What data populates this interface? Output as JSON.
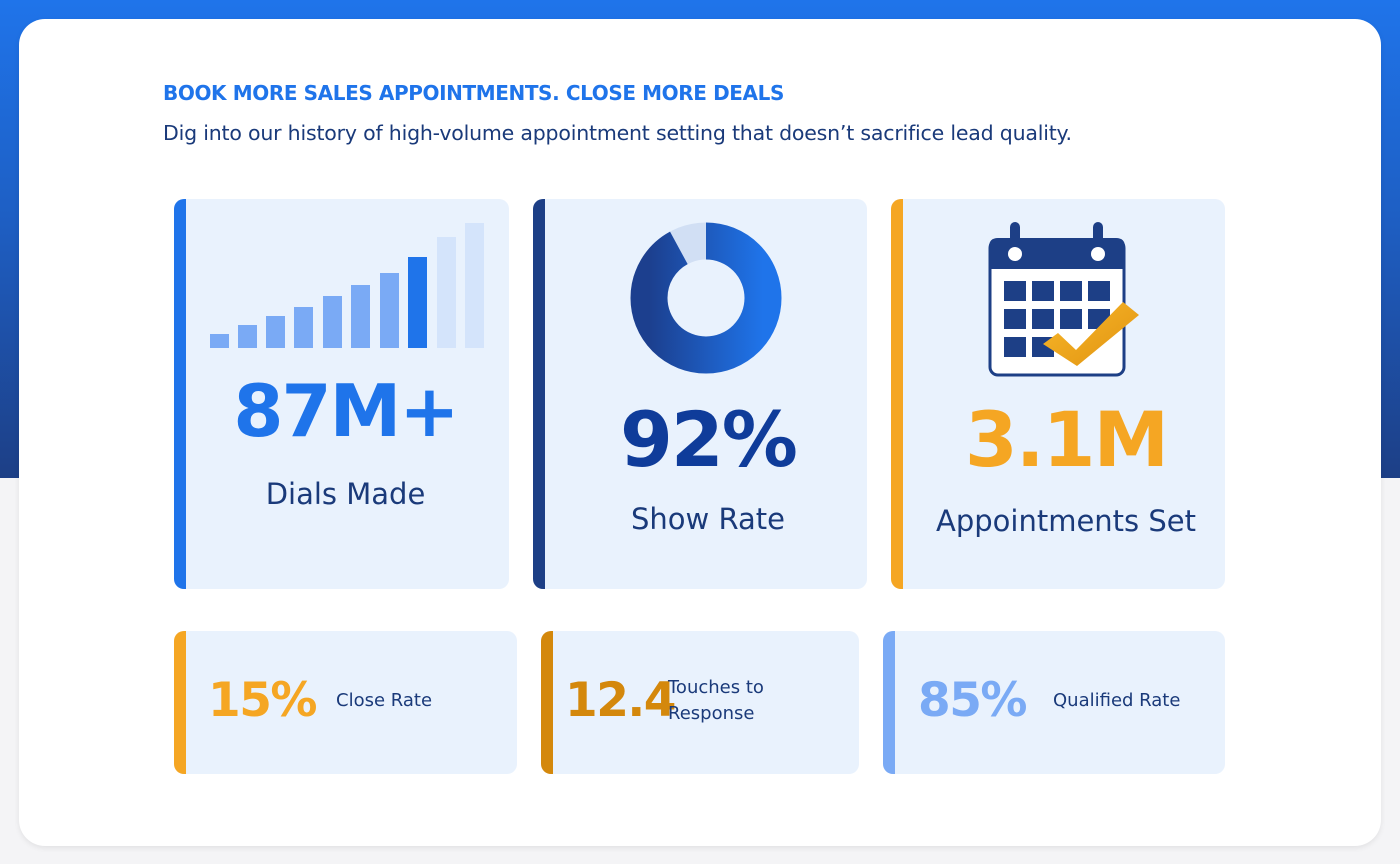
{
  "header": {
    "eyebrow": "BOOK MORE SALES APPOINTMENTS. CLOSE MORE DEALS",
    "subtitle": "Dig into our history of high-volume appointment setting that doesn’t sacrifice lead quality."
  },
  "colors": {
    "brand_blue": "#1f74ea",
    "navy": "#1d3f86",
    "gold": "#f5a623",
    "dark_gold": "#d4880c",
    "light_blue": "#7aaaf5",
    "card_bg": "#e9f2fd"
  },
  "stats": [
    {
      "value": "87M+",
      "label": "Dials Made",
      "icon": "bar-chart-icon"
    },
    {
      "value": "92%",
      "label": "Show Rate",
      "icon": "donut-chart-icon",
      "fill_percent": 92
    },
    {
      "value": "3.1M",
      "label": "Appointments Set",
      "icon": "calendar-check-icon"
    }
  ],
  "small_stats": [
    {
      "value": "15%",
      "label": "Close Rate"
    },
    {
      "value": "12.4",
      "label_line1": "Touches to",
      "label_line2": "Response"
    },
    {
      "value": "85%",
      "label": "Qualified Rate"
    }
  ]
}
